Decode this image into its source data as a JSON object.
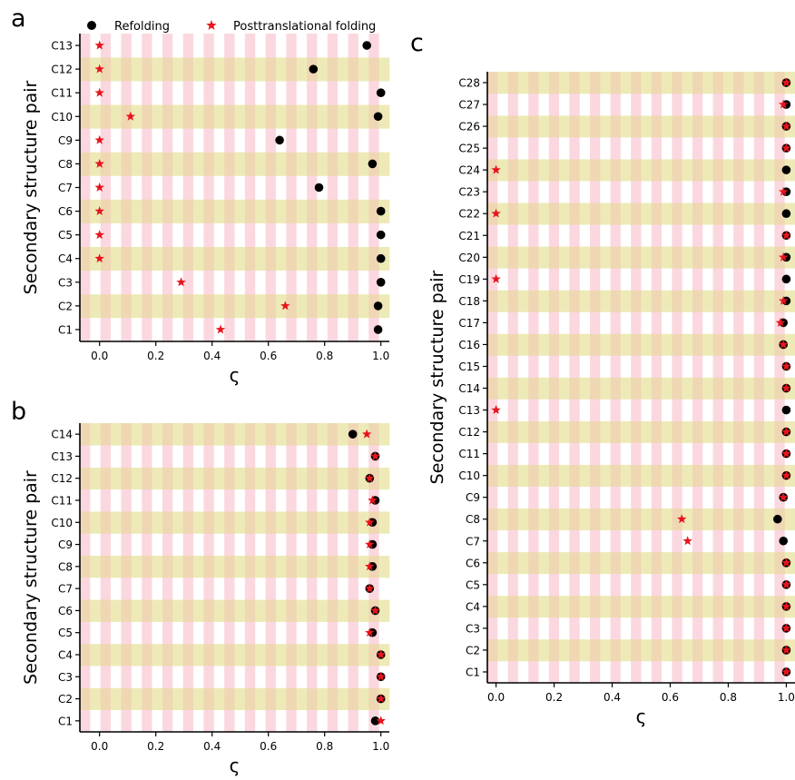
{
  "legend": {
    "entries": [
      {
        "label": "Refolding",
        "marker": "circle",
        "color": "#000000"
      },
      {
        "label": "Posttranslational folding",
        "marker": "star",
        "color": "#e8141c"
      }
    ],
    "placement": "top"
  },
  "colors": {
    "checker_pink": "#fbd8df",
    "checker_olive": "#eeeab7",
    "checker_tan": "#efd7b4",
    "checker_white": "#ffffff",
    "refolding": "#000000",
    "posttranslational": "#e8141c"
  },
  "chart_data": [
    {
      "panel": "a",
      "type": "scatter",
      "xlabel": "ς",
      "ylabel": "Secondary structure pair",
      "xlim": [
        -0.07,
        1.03
      ],
      "xticks": [
        "0.0",
        "0.2",
        "0.4",
        "0.6",
        "0.8",
        "1.0"
      ],
      "xtick_values": [
        0.0,
        0.2,
        0.4,
        0.6,
        0.8,
        1.0
      ],
      "categories": [
        "C1",
        "C2",
        "C3",
        "C4",
        "C5",
        "C6",
        "C7",
        "C8",
        "C9",
        "C10",
        "C11",
        "C12",
        "C13"
      ],
      "grid": "checkerboard",
      "series": [
        {
          "name": "Refolding",
          "marker": "circle",
          "values": [
            0.99,
            0.99,
            1.0,
            1.0,
            1.0,
            1.0,
            0.78,
            0.97,
            0.64,
            0.99,
            1.0,
            0.76,
            0.95
          ]
        },
        {
          "name": "Posttranslational folding",
          "marker": "star",
          "values": [
            0.43,
            0.66,
            0.29,
            0.0,
            0.0,
            0.0,
            0.0,
            0.0,
            0.0,
            0.11,
            0.0,
            0.0,
            0.0
          ]
        }
      ]
    },
    {
      "panel": "b",
      "type": "scatter",
      "xlabel": "ς",
      "ylabel": "Secondary structure pair",
      "xlim": [
        -0.07,
        1.03
      ],
      "xticks": [
        "0.0",
        "0.2",
        "0.4",
        "0.6",
        "0.8",
        "1.0"
      ],
      "xtick_values": [
        0.0,
        0.2,
        0.4,
        0.6,
        0.8,
        1.0
      ],
      "categories": [
        "C1",
        "C2",
        "C3",
        "C4",
        "C5",
        "C6",
        "C7",
        "C8",
        "C9",
        "C10",
        "C11",
        "C12",
        "C13",
        "C14"
      ],
      "grid": "checkerboard",
      "series": [
        {
          "name": "Refolding",
          "marker": "circle",
          "values": [
            0.98,
            1.0,
            1.0,
            1.0,
            0.97,
            0.98,
            0.96,
            0.97,
            0.97,
            0.97,
            0.98,
            0.96,
            0.98,
            0.9
          ]
        },
        {
          "name": "Posttranslational folding",
          "marker": "star",
          "values": [
            1.0,
            1.0,
            1.0,
            1.0,
            0.96,
            0.98,
            0.96,
            0.96,
            0.96,
            0.96,
            0.97,
            0.96,
            0.98,
            0.95
          ]
        }
      ]
    },
    {
      "panel": "c",
      "type": "scatter",
      "xlabel": "ς",
      "ylabel": "Secondary structure pair",
      "xlim": [
        -0.03,
        1.03
      ],
      "xticks": [
        "0.0",
        "0.2",
        "0.4",
        "0.6",
        "0.8",
        "1.0"
      ],
      "xtick_values": [
        0.0,
        0.2,
        0.4,
        0.6,
        0.8,
        1.0
      ],
      "categories": [
        "C1",
        "C2",
        "C3",
        "C4",
        "C5",
        "C6",
        "C7",
        "C8",
        "C9",
        "C10",
        "C11",
        "C12",
        "C13",
        "C14",
        "C15",
        "C16",
        "C17",
        "C18",
        "C19",
        "C20",
        "C21",
        "C22",
        "C23",
        "C24",
        "C25",
        "C26",
        "C27",
        "C28"
      ],
      "grid": "checkerboard",
      "series": [
        {
          "name": "Refolding",
          "marker": "circle",
          "values": [
            1.0,
            1.0,
            1.0,
            1.0,
            1.0,
            1.0,
            0.99,
            0.97,
            0.99,
            1.0,
            1.0,
            1.0,
            1.0,
            1.0,
            1.0,
            0.99,
            0.99,
            1.0,
            1.0,
            1.0,
            1.0,
            1.0,
            1.0,
            1.0,
            1.0,
            1.0,
            1.0,
            1.0
          ]
        },
        {
          "name": "Posttranslational folding",
          "marker": "star",
          "values": [
            1.0,
            1.0,
            1.0,
            1.0,
            1.0,
            1.0,
            0.66,
            0.64,
            0.99,
            1.0,
            1.0,
            1.0,
            0.0,
            1.0,
            1.0,
            0.99,
            0.98,
            0.99,
            0.0,
            0.99,
            1.0,
            0.0,
            0.99,
            0.0,
            1.0,
            1.0,
            0.99,
            1.0
          ]
        }
      ]
    }
  ]
}
